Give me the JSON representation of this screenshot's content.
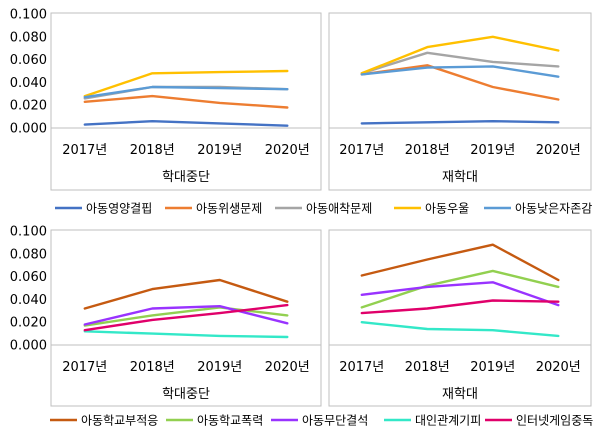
{
  "chart_data": [
    {
      "type": "line",
      "ylim": [
        0,
        0.1
      ],
      "yticks": [
        "0.000",
        "0.020",
        "0.040",
        "0.060",
        "0.080",
        "0.100"
      ],
      "x": [
        "2017년",
        "2018년",
        "2019년",
        "2020년"
      ],
      "panels": [
        {
          "group_label": "학대중단",
          "series": [
            {
              "name": "아동영양결핍",
              "color": "#4472C4",
              "values": [
                0.003,
                0.006,
                0.004,
                0.002
              ]
            },
            {
              "name": "아동위생문제",
              "color": "#ED7D31",
              "values": [
                0.023,
                0.028,
                0.022,
                0.018
              ]
            },
            {
              "name": "아동애착문제",
              "color": "#A5A5A5",
              "values": [
                0.026,
                0.036,
                0.036,
                0.034
              ]
            },
            {
              "name": "아동우울",
              "color": "#FFC000",
              "values": [
                0.028,
                0.048,
                0.049,
                0.05
              ]
            },
            {
              "name": "아동낮은자존감",
              "color": "#5B9BD5",
              "values": [
                0.027,
                0.036,
                0.035,
                0.034
              ]
            }
          ]
        },
        {
          "group_label": "재학대",
          "series": [
            {
              "name": "아동영양결핍",
              "color": "#4472C4",
              "values": [
                0.004,
                0.005,
                0.006,
                0.005
              ]
            },
            {
              "name": "아동위생문제",
              "color": "#ED7D31",
              "values": [
                0.047,
                0.055,
                0.036,
                0.025
              ]
            },
            {
              "name": "아동애착문제",
              "color": "#A5A5A5",
              "values": [
                0.048,
                0.066,
                0.058,
                0.054
              ]
            },
            {
              "name": "아동우울",
              "color": "#FFC000",
              "values": [
                0.048,
                0.071,
                0.08,
                0.068
              ]
            },
            {
              "name": "아동낮은자존감",
              "color": "#5B9BD5",
              "values": [
                0.047,
                0.053,
                0.054,
                0.045
              ]
            }
          ]
        }
      ],
      "legend": [
        "아동영양결핍",
        "아동위생문제",
        "아동애착문제",
        "아동우울",
        "아동낮은자존감"
      ],
      "legend_position": "bottom"
    },
    {
      "type": "line",
      "ylim": [
        0,
        0.1
      ],
      "yticks": [
        "0.000",
        "0.020",
        "0.040",
        "0.060",
        "0.080",
        "0.100"
      ],
      "x": [
        "2017년",
        "2018년",
        "2019년",
        "2020년"
      ],
      "panels": [
        {
          "group_label": "학대중단",
          "series": [
            {
              "name": "아동학교부적응",
              "color": "#C55A11",
              "values": [
                0.032,
                0.049,
                0.057,
                0.038
              ]
            },
            {
              "name": "아동학교폭력",
              "color": "#92D050",
              "values": [
                0.017,
                0.026,
                0.033,
                0.026
              ]
            },
            {
              "name": "아동무단결석",
              "color": "#9933FF",
              "values": [
                0.018,
                0.032,
                0.034,
                0.019
              ]
            },
            {
              "name": "대인관계기피",
              "color": "#33E8C8",
              "values": [
                0.012,
                0.01,
                0.008,
                0.007
              ]
            },
            {
              "name": "인터넷게임중독",
              "color": "#E0006A",
              "values": [
                0.013,
                0.022,
                0.028,
                0.035
              ]
            }
          ]
        },
        {
          "group_label": "재학대",
          "series": [
            {
              "name": "아동학교부적응",
              "color": "#C55A11",
              "values": [
                0.061,
                0.075,
                0.088,
                0.057
              ]
            },
            {
              "name": "아동학교폭력",
              "color": "#92D050",
              "values": [
                0.033,
                0.052,
                0.065,
                0.051
              ]
            },
            {
              "name": "아동무단결석",
              "color": "#9933FF",
              "values": [
                0.044,
                0.051,
                0.055,
                0.035
              ]
            },
            {
              "name": "대인관계기피",
              "color": "#33E8C8",
              "values": [
                0.02,
                0.014,
                0.013,
                0.008
              ]
            },
            {
              "name": "인터넷게임중독",
              "color": "#E0006A",
              "values": [
                0.028,
                0.032,
                0.039,
                0.038
              ]
            }
          ]
        }
      ],
      "legend": [
        "아동학교부적응",
        "아동학교폭력",
        "아동무단결석",
        "대인관계기피",
        "인터넷게임중독"
      ],
      "legend_position": "bottom"
    }
  ]
}
